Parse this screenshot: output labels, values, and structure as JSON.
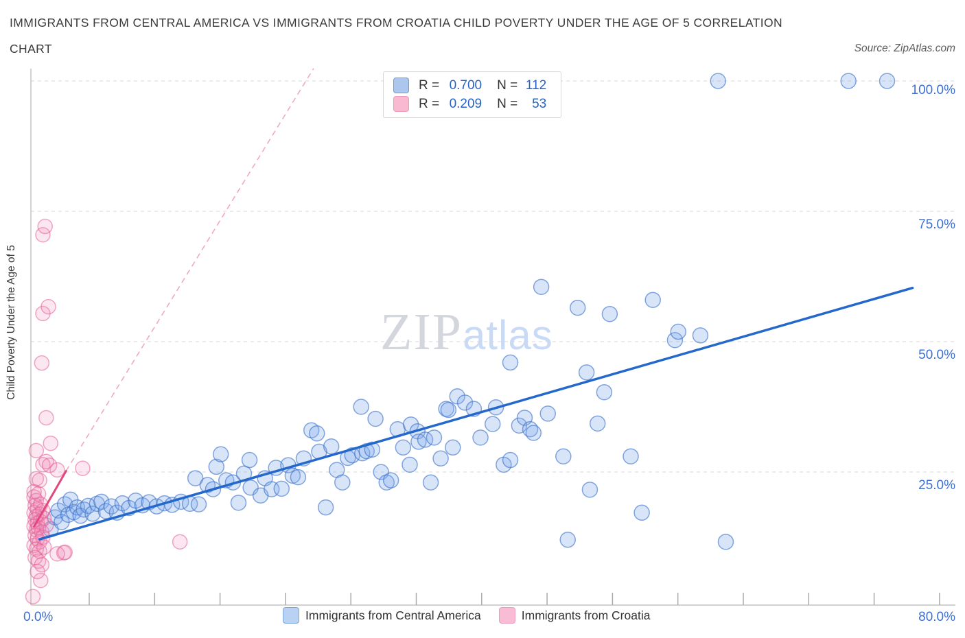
{
  "header": {
    "title_line1": "IMMIGRANTS FROM CENTRAL AMERICA VS IMMIGRANTS FROM CROATIA CHILD POVERTY UNDER THE AGE OF 5 CORRELATION",
    "title_line2": "CHART",
    "source": "Source: ZipAtlas.com"
  },
  "legend_box": {
    "rows": [
      {
        "r_label": "R =",
        "r_value": "0.700",
        "n_label": "N =",
        "n_value": "112",
        "swatch_fill": "#abc7ee",
        "swatch_border": "#6f9bd8"
      },
      {
        "r_label": "R =",
        "r_value": "0.209",
        "n_label": "N =",
        "n_value": "53",
        "swatch_fill": "#f8b9d1",
        "swatch_border": "#ec9cba"
      }
    ]
  },
  "axes": {
    "y_title": "Child Poverty Under the Age of 5",
    "y_tick_labels": [
      {
        "value": 100,
        "label": "100.0%"
      },
      {
        "value": 75,
        "label": "75.0%"
      },
      {
        "value": 50,
        "label": "50.0%"
      },
      {
        "value": 25,
        "label": "25.0%"
      }
    ],
    "x_left_label": "0.0%",
    "x_right_label": "80.0%",
    "label_color": "#3e6fd1"
  },
  "watermark": {
    "zip": "ZIP",
    "atlas": "atlas"
  },
  "bottom_legend": [
    {
      "label": "Immigrants from Central America",
      "swatch_fill": "#b9d2f2",
      "swatch_border": "#7fa6da"
    },
    {
      "label": "Immigrants from Croatia",
      "swatch_fill": "#f8bcd4",
      "swatch_border": "#eb9dbb"
    }
  ],
  "chart_data": {
    "type": "scatter",
    "title": "Immigrants from Central America vs Immigrants from Croatia Child Poverty under the Age of 5 Correlation Chart",
    "legend_position": "top-center",
    "grid": "horizontal-dashed",
    "x_axis": {
      "min": 0,
      "max": 83,
      "left_label": "0.0%",
      "right_label": "80.0%",
      "units": "%"
    },
    "y_axis": {
      "min": 0,
      "max": 102,
      "gridlines": [
        25,
        50,
        75,
        100
      ],
      "tick_labels": [
        "25.0%",
        "50.0%",
        "75.0%",
        "100.0%"
      ],
      "units": "%"
    },
    "series": [
      {
        "name": "Immigrants from Central America",
        "key": "central_america",
        "R": 0.7,
        "N": 112,
        "marker_fill": "rgba(125,170,235,0.30)",
        "marker_stroke": "rgba(55,110,200,0.60)",
        "marker_radius": 11,
        "points": [
          [
            1.6,
            14.0
          ],
          [
            2.0,
            16.3
          ],
          [
            2.3,
            17.6
          ],
          [
            2.6,
            15.4
          ],
          [
            2.9,
            18.8
          ],
          [
            3.2,
            16.8
          ],
          [
            3.4,
            19.7
          ],
          [
            3.7,
            17.3
          ],
          [
            4.0,
            18.2
          ],
          [
            4.3,
            16.6
          ],
          [
            4.6,
            17.8
          ],
          [
            5.0,
            18.5
          ],
          [
            5.4,
            17.0
          ],
          [
            5.8,
            18.9
          ],
          [
            6.2,
            19.3
          ],
          [
            6.6,
            17.5
          ],
          [
            7.1,
            18.4
          ],
          [
            7.6,
            17.2
          ],
          [
            8.1,
            19.0
          ],
          [
            8.7,
            18.1
          ],
          [
            9.3,
            19.5
          ],
          [
            9.9,
            18.6
          ],
          [
            10.5,
            19.2
          ],
          [
            11.2,
            18.4
          ],
          [
            11.9,
            19.0
          ],
          [
            12.6,
            18.7
          ],
          [
            13.4,
            19.3
          ],
          [
            14.2,
            18.9
          ],
          [
            14.7,
            23.8
          ],
          [
            15.0,
            18.8
          ],
          [
            15.8,
            22.5
          ],
          [
            16.3,
            21.7
          ],
          [
            16.6,
            26.0
          ],
          [
            17.0,
            28.4
          ],
          [
            17.5,
            23.4
          ],
          [
            18.1,
            23.0
          ],
          [
            18.6,
            19.1
          ],
          [
            19.1,
            24.7
          ],
          [
            19.6,
            27.3
          ],
          [
            19.7,
            22.0
          ],
          [
            20.6,
            20.5
          ],
          [
            21.0,
            23.8
          ],
          [
            21.6,
            21.7
          ],
          [
            22.0,
            25.8
          ],
          [
            22.5,
            21.8
          ],
          [
            23.1,
            26.3
          ],
          [
            23.5,
            24.3
          ],
          [
            24.0,
            24.0
          ],
          [
            24.5,
            27.6
          ],
          [
            25.2,
            33.0
          ],
          [
            25.7,
            32.4
          ],
          [
            25.9,
            28.9
          ],
          [
            26.5,
            18.2
          ],
          [
            27.0,
            29.9
          ],
          [
            27.5,
            25.4
          ],
          [
            28.0,
            23.0
          ],
          [
            28.5,
            27.7
          ],
          [
            28.9,
            28.2
          ],
          [
            29.7,
            37.5
          ],
          [
            29.8,
            28.6
          ],
          [
            30.2,
            29.0
          ],
          [
            30.7,
            29.3
          ],
          [
            31.0,
            35.2
          ],
          [
            31.5,
            25.0
          ],
          [
            32.0,
            23.0
          ],
          [
            32.4,
            23.4
          ],
          [
            33.0,
            33.2
          ],
          [
            33.5,
            29.7
          ],
          [
            34.1,
            26.4
          ],
          [
            34.2,
            34.1
          ],
          [
            34.8,
            32.8
          ],
          [
            34.9,
            30.8
          ],
          [
            35.5,
            31.2
          ],
          [
            36.0,
            23.0
          ],
          [
            36.3,
            31.6
          ],
          [
            36.9,
            27.6
          ],
          [
            37.4,
            37.1
          ],
          [
            37.6,
            36.9
          ],
          [
            38.0,
            29.7
          ],
          [
            38.4,
            39.5
          ],
          [
            39.1,
            38.3
          ],
          [
            39.9,
            37.1
          ],
          [
            40.5,
            31.6
          ],
          [
            41.6,
            34.2
          ],
          [
            41.9,
            37.4
          ],
          [
            42.6,
            26.4
          ],
          [
            43.2,
            46.0
          ],
          [
            43.2,
            27.3
          ],
          [
            44.0,
            33.9
          ],
          [
            44.5,
            35.4
          ],
          [
            45.0,
            33.2
          ],
          [
            45.3,
            32.5
          ],
          [
            46.0,
            60.5
          ],
          [
            46.6,
            36.2
          ],
          [
            48.0,
            28.0
          ],
          [
            48.4,
            12.0
          ],
          [
            49.3,
            56.5
          ],
          [
            50.1,
            44.1
          ],
          [
            50.4,
            21.6
          ],
          [
            51.1,
            34.3
          ],
          [
            51.7,
            40.3
          ],
          [
            52.2,
            55.3
          ],
          [
            54.1,
            28.0
          ],
          [
            55.1,
            17.2
          ],
          [
            56.1,
            58.0
          ],
          [
            58.1,
            50.3
          ],
          [
            58.4,
            51.9
          ],
          [
            60.4,
            51.2
          ],
          [
            62.0,
            100.0
          ],
          [
            62.7,
            11.6
          ],
          [
            73.8,
            100.0
          ],
          [
            77.3,
            100.0
          ]
        ]
      },
      {
        "name": "Immigrants from Croatia",
        "key": "croatia",
        "R": 0.209,
        "N": 53,
        "marker_fill": "rgba(240,135,180,0.20)",
        "marker_stroke": "rgba(228,95,150,0.55)",
        "marker_radius": 10.5,
        "points": [
          [
            0.9,
            70.5
          ],
          [
            1.1,
            72.1
          ],
          [
            0.9,
            55.4
          ],
          [
            1.4,
            56.7
          ],
          [
            0.8,
            45.9
          ],
          [
            1.2,
            35.4
          ],
          [
            1.6,
            30.5
          ],
          [
            0.3,
            29.1
          ],
          [
            1.2,
            27.0
          ],
          [
            0.9,
            26.4
          ],
          [
            1.5,
            26.3
          ],
          [
            2.2,
            25.4
          ],
          [
            4.5,
            25.7
          ],
          [
            0.3,
            23.7
          ],
          [
            0.6,
            23.4
          ],
          [
            0.1,
            21.2
          ],
          [
            2.8,
            9.5
          ],
          [
            13.3,
            11.6
          ],
          [
            0.0,
            1.1
          ],
          [
            2.9,
            9.6
          ],
          [
            2.2,
            9.3
          ],
          [
            0.1,
            20.2
          ],
          [
            0.3,
            19.5
          ],
          [
            0.5,
            20.8
          ],
          [
            0.2,
            18.6
          ],
          [
            0.4,
            17.9
          ],
          [
            0.7,
            18.8
          ],
          [
            0.1,
            17.2
          ],
          [
            0.3,
            16.5
          ],
          [
            0.6,
            16.9
          ],
          [
            0.9,
            17.6
          ],
          [
            0.2,
            15.8
          ],
          [
            0.4,
            15.2
          ],
          [
            0.7,
            15.5
          ],
          [
            1.0,
            16.1
          ],
          [
            0.1,
            14.6
          ],
          [
            0.3,
            13.9
          ],
          [
            0.5,
            14.3
          ],
          [
            0.8,
            13.5
          ],
          [
            1.2,
            14.8
          ],
          [
            0.2,
            12.8
          ],
          [
            0.4,
            12.2
          ],
          [
            0.6,
            11.6
          ],
          [
            0.9,
            12.5
          ],
          [
            0.1,
            10.9
          ],
          [
            0.3,
            10.2
          ],
          [
            0.6,
            9.8
          ],
          [
            1.0,
            10.6
          ],
          [
            0.2,
            8.6
          ],
          [
            0.5,
            7.9
          ],
          [
            0.8,
            7.2
          ],
          [
            0.4,
            5.9
          ],
          [
            0.7,
            4.2
          ]
        ]
      }
    ],
    "trend_lines": [
      {
        "series": "central_america",
        "style": "solid",
        "color": "#2468cc",
        "width": 3.5,
        "from": [
          0.6,
          12.1
        ],
        "to": [
          79.6,
          60.3
        ]
      },
      {
        "series": "croatia",
        "style": "solid",
        "color": "#e0487e",
        "width": 3,
        "from": [
          0.1,
          14.5
        ],
        "to": [
          3.0,
          25.2
        ]
      },
      {
        "series": "croatia",
        "style": "dashed",
        "color": "#efaac0",
        "width": 1.6,
        "from": [
          3.0,
          25.2
        ],
        "to": [
          25.4,
          102.4
        ]
      }
    ]
  }
}
